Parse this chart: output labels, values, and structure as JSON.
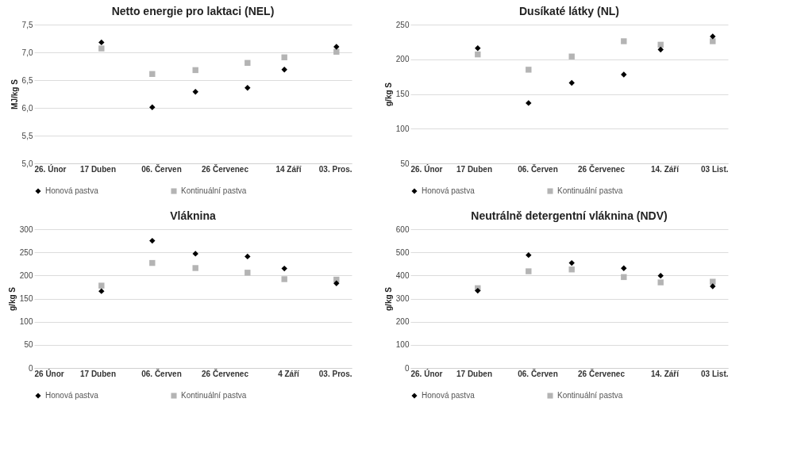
{
  "chart_data": [
    {
      "type": "scatter",
      "title": "Netto energie pro laktaci   (NEL)",
      "ylabel": "MJ/kg S",
      "x": [
        "--04-20",
        "--05-30",
        "--07-03",
        "--08-13",
        "--09-11",
        "--10-22"
      ],
      "xlim": [
        "--02-26",
        "--11-03"
      ],
      "xticks": [
        {
          "value": "--02-26",
          "label": "26. Únor"
        },
        {
          "value": "--04-17",
          "label": "17 Duben"
        },
        {
          "value": "--06-06",
          "label": "06. Červen"
        },
        {
          "value": "--07-26",
          "label": "26 Červenec"
        },
        {
          "value": "--09-14",
          "label": "14 Září"
        },
        {
          "value": "--11-03",
          "label": "03. Pros."
        }
      ],
      "ylim": [
        5,
        7.5
      ],
      "yticks": [
        {
          "value": 5,
          "label": "5,0"
        },
        {
          "value": 5.5,
          "label": "5,5"
        },
        {
          "value": 6,
          "label": "6,0"
        },
        {
          "value": 6.5,
          "label": "6,5"
        },
        {
          "value": 7,
          "label": "7,0"
        },
        {
          "value": 7.5,
          "label": "7,5"
        }
      ],
      "grid": "y",
      "legend": "bottom",
      "series": [
        {
          "name": "Honová pastva",
          "color": "#000000",
          "marker": "diamond",
          "values": [
            7.18,
            6.01,
            6.29,
            6.36,
            6.69,
            7.1
          ]
        },
        {
          "name": "Kontinuální pastva",
          "color": "#b4b4b4",
          "marker": "square",
          "values": [
            7.07,
            6.61,
            6.68,
            6.81,
            6.91,
            7.01
          ]
        }
      ]
    },
    {
      "type": "scatter",
      "title": "Dusíkaté látky (NL)",
      "ylabel": "g/kg S",
      "x": [
        "--04-20",
        "--05-30",
        "--07-03",
        "--08-13",
        "--09-11",
        "--10-22"
      ],
      "xlim": [
        "--02-26",
        "--11-03"
      ],
      "xticks": [
        {
          "value": "--02-26",
          "label": "26. Únor"
        },
        {
          "value": "--04-17",
          "label": "17 Duben"
        },
        {
          "value": "--06-06",
          "label": "06. Červen"
        },
        {
          "value": "--07-26",
          "label": "26 Červenec"
        },
        {
          "value": "--09-14",
          "label": "14.  Září"
        },
        {
          "value": "--11-03",
          "label": "03 List."
        }
      ],
      "ylim": [
        50,
        250
      ],
      "yticks": [
        50,
        100,
        150,
        200,
        250
      ],
      "grid": "y",
      "legend": "bottom",
      "series": [
        {
          "name": "Honová pastva",
          "color": "#000000",
          "marker": "diamond",
          "values": [
            216,
            137,
            166,
            178,
            214,
            233
          ]
        },
        {
          "name": "Kontinuální pastva",
          "color": "#b4b4b4",
          "marker": "square",
          "values": [
            207,
            185,
            204,
            226,
            221,
            226
          ]
        }
      ]
    },
    {
      "type": "scatter",
      "title": "Vláknina",
      "ylabel": "g/kg S",
      "x": [
        "--04-20",
        "--05-30",
        "--07-03",
        "--08-13",
        "--09-11",
        "--10-22"
      ],
      "xlim": [
        "--02-26",
        "--11-03"
      ],
      "xticks": [
        {
          "value": "--02-26",
          "label": "26 Únor"
        },
        {
          "value": "--04-17",
          "label": "17 Duben"
        },
        {
          "value": "--06-06",
          "label": "06. Červen"
        },
        {
          "value": "--07-26",
          "label": "26 Červenec"
        },
        {
          "value": "--09-14",
          "label": "4  Září"
        },
        {
          "value": "--11-03",
          "label": "03. Pros."
        }
      ],
      "ylim": [
        0,
        300
      ],
      "yticks": [
        0,
        50,
        100,
        150,
        200,
        250,
        300
      ],
      "grid": "y",
      "legend": "bottom",
      "series": [
        {
          "name": "Honová pastva",
          "color": "#000000",
          "marker": "diamond",
          "values": [
            166,
            275,
            247,
            241,
            215,
            183
          ]
        },
        {
          "name": "Kontinuální pastva",
          "color": "#b4b4b4",
          "marker": "square",
          "values": [
            178,
            227,
            216,
            206,
            192,
            191
          ]
        }
      ]
    },
    {
      "type": "scatter",
      "title": "Neutrálně detergentní vláknina (NDV)",
      "ylabel": "g/kg S",
      "x": [
        "--04-20",
        "--05-30",
        "--07-03",
        "--08-13",
        "--09-11",
        "--10-22"
      ],
      "xlim": [
        "--02-26",
        "--11-03"
      ],
      "xticks": [
        {
          "value": "--02-26",
          "label": "26. Únor"
        },
        {
          "value": "--04-17",
          "label": "17 Duben"
        },
        {
          "value": "--06-06",
          "label": "06. Červen"
        },
        {
          "value": "--07-26",
          "label": "26 Červenec"
        },
        {
          "value": "--09-14",
          "label": "14.  Září"
        },
        {
          "value": "--11-03",
          "label": "03 List."
        }
      ],
      "ylim": [
        0,
        600
      ],
      "yticks": [
        0,
        100,
        200,
        300,
        400,
        500,
        600
      ],
      "grid": "y",
      "legend": "bottom",
      "series": [
        {
          "name": "Honová pastva",
          "color": "#000000",
          "marker": "diamond",
          "values": [
            334,
            488,
            454,
            431,
            399,
            353
          ]
        },
        {
          "name": "Kontinuální pastva",
          "color": "#b4b4b4",
          "marker": "square",
          "values": [
            345,
            418,
            426,
            393,
            370,
            373
          ]
        }
      ]
    }
  ]
}
